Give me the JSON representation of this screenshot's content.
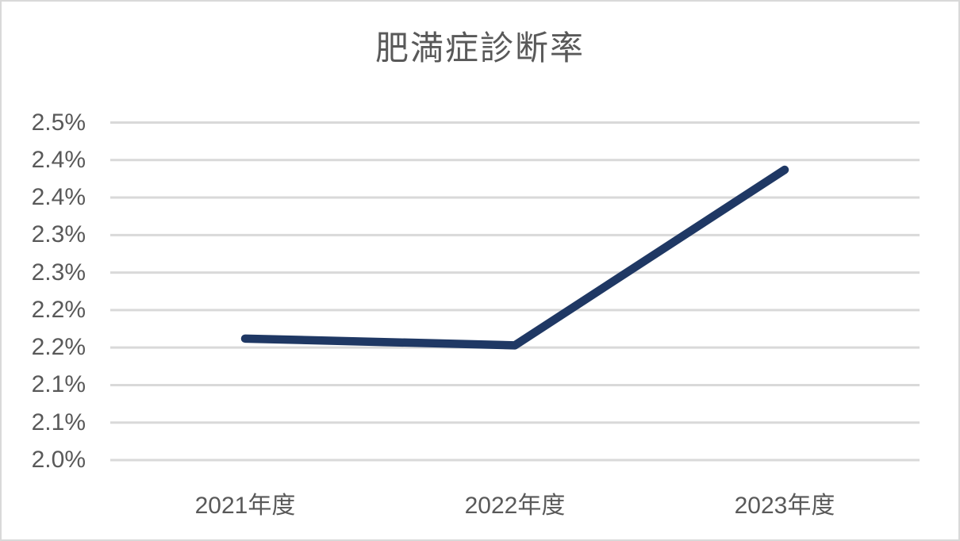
{
  "window": {
    "background_color": "#ffffff",
    "border_color": "#d9d9d9"
  },
  "chart_data": {
    "type": "line",
    "title": "肥満症診断率",
    "categories": [
      "2021年度",
      "2022年度",
      "2023年度"
    ],
    "series": [
      {
        "name": "肥満症診断率",
        "values": [
          2.18,
          2.17,
          2.43
        ]
      }
    ],
    "unit": "%",
    "ylim": [
      2.0,
      2.5
    ],
    "y_tick_labels_top_to_bottom": [
      "2.5%",
      "2.4%",
      "2.4%",
      "2.3%",
      "2.3%",
      "2.2%",
      "2.2%",
      "2.1%",
      "2.1%",
      "2.0%"
    ],
    "grid": true,
    "legend_position": "none",
    "line_color": "#1f3864",
    "gridline_color": "#d9d9d9",
    "text_color": "#595959"
  }
}
